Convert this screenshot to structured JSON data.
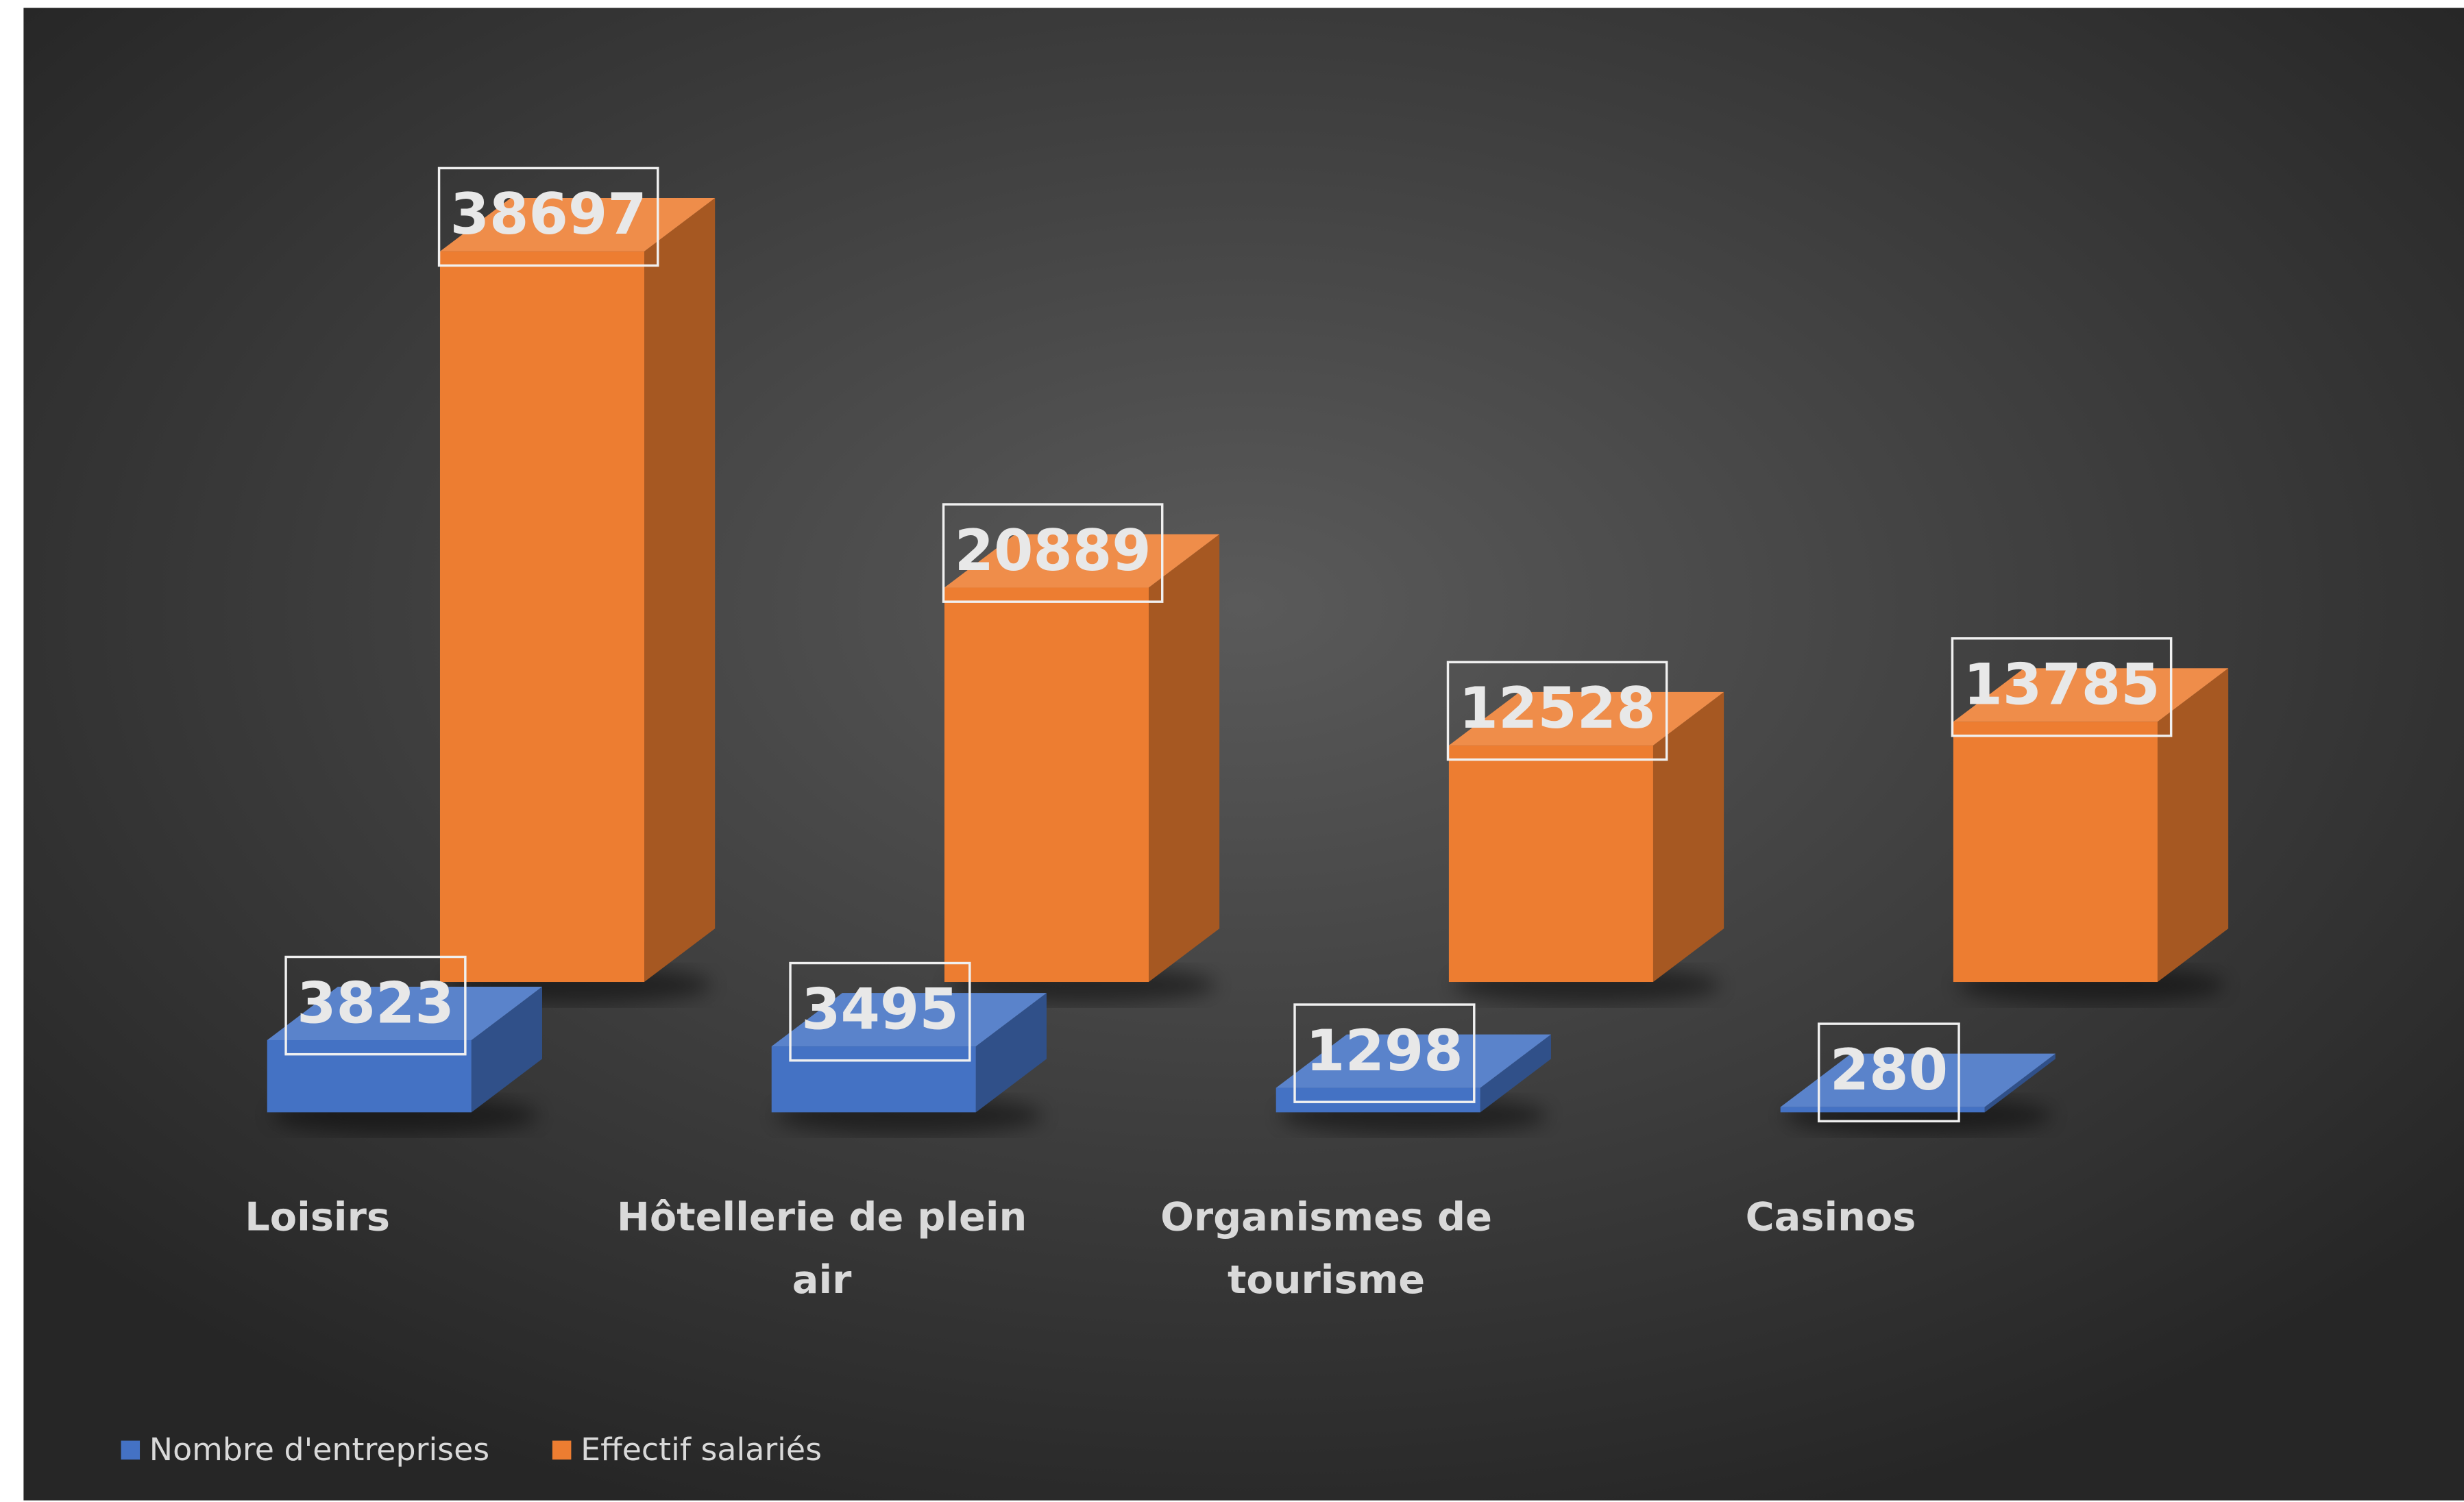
{
  "chart_data": {
    "type": "bar3d",
    "categories": [
      "Loisirs",
      "Hôtellerie de plein air",
      "Organismes de tourisme",
      "Casinos"
    ],
    "series": [
      {
        "name": "Nombre d'entreprises",
        "color": "#4472c4",
        "values": [
          3823,
          3495,
          1298,
          280
        ]
      },
      {
        "name": "Effectif salariés",
        "color": "#ed7d31",
        "values": [
          38697,
          20889,
          12528,
          13785
        ]
      }
    ],
    "legend": "bottom-left"
  }
}
